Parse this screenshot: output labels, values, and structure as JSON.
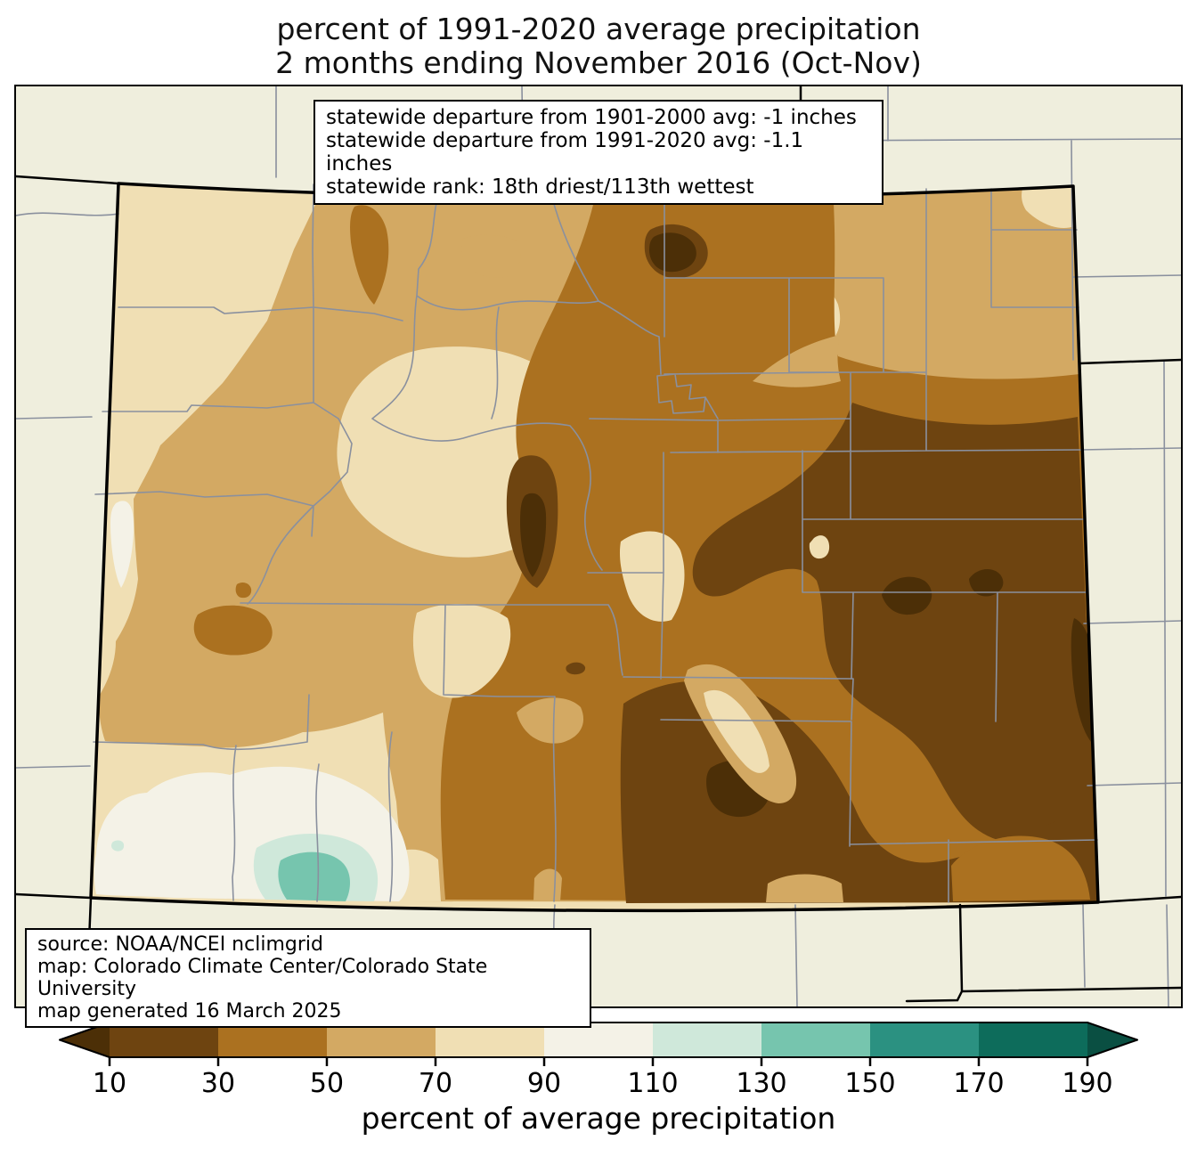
{
  "title": {
    "line1": "percent of 1991-2020 average precipitation",
    "line2": "2 months ending November 2016 (Oct-Nov)"
  },
  "stats_box": {
    "lines": [
      "statewide departure from 1901-2000 avg: -1 inches",
      "statewide departure from 1991-2020 avg: -1.1 inches",
      "statewide rank: 18th driest/113th wettest"
    ]
  },
  "source_box": {
    "lines": [
      "source: NOAA/NCEI nclimgrid",
      "map: Colorado Climate Center/Colorado State University",
      "map generated 16 March 2025"
    ]
  },
  "map": {
    "region": "Colorado with county boundaries and neighboring states",
    "outside_color": "#efeedd",
    "county_line_color": "#8a909e",
    "state_line_color": "#000000"
  },
  "colorbar": {
    "axis_label": "percent of average precipitation",
    "ticks": [
      "10",
      "30",
      "50",
      "70",
      "90",
      "110",
      "130",
      "150",
      "170",
      "190"
    ],
    "bands": [
      {
        "id": "lt10",
        "range": "<10",
        "color": "#4c2f07",
        "shape": "left-arrow"
      },
      {
        "id": "b10_30",
        "range": "10-30",
        "color": "#6e4410",
        "shape": "rect"
      },
      {
        "id": "b30_50",
        "range": "30-50",
        "color": "#ab7120",
        "shape": "rect"
      },
      {
        "id": "b50_70",
        "range": "50-70",
        "color": "#d3a963",
        "shape": "rect"
      },
      {
        "id": "b70_90",
        "range": "70-90",
        "color": "#f0dfb4",
        "shape": "rect"
      },
      {
        "id": "b90_110",
        "range": "90-110",
        "color": "#f4f2e7",
        "shape": "rect"
      },
      {
        "id": "b110_130",
        "range": "110-130",
        "color": "#cfe8da",
        "shape": "rect"
      },
      {
        "id": "b130_150",
        "range": "130-150",
        "color": "#76c5ae",
        "shape": "rect"
      },
      {
        "id": "b150_170",
        "range": "150-170",
        "color": "#2b9181",
        "shape": "rect"
      },
      {
        "id": "b170_190",
        "range": "170-190",
        "color": "#0d6c5b",
        "shape": "rect"
      },
      {
        "id": "gt190",
        "range": ">190",
        "color": "#0a4f42",
        "shape": "right-arrow"
      }
    ]
  }
}
